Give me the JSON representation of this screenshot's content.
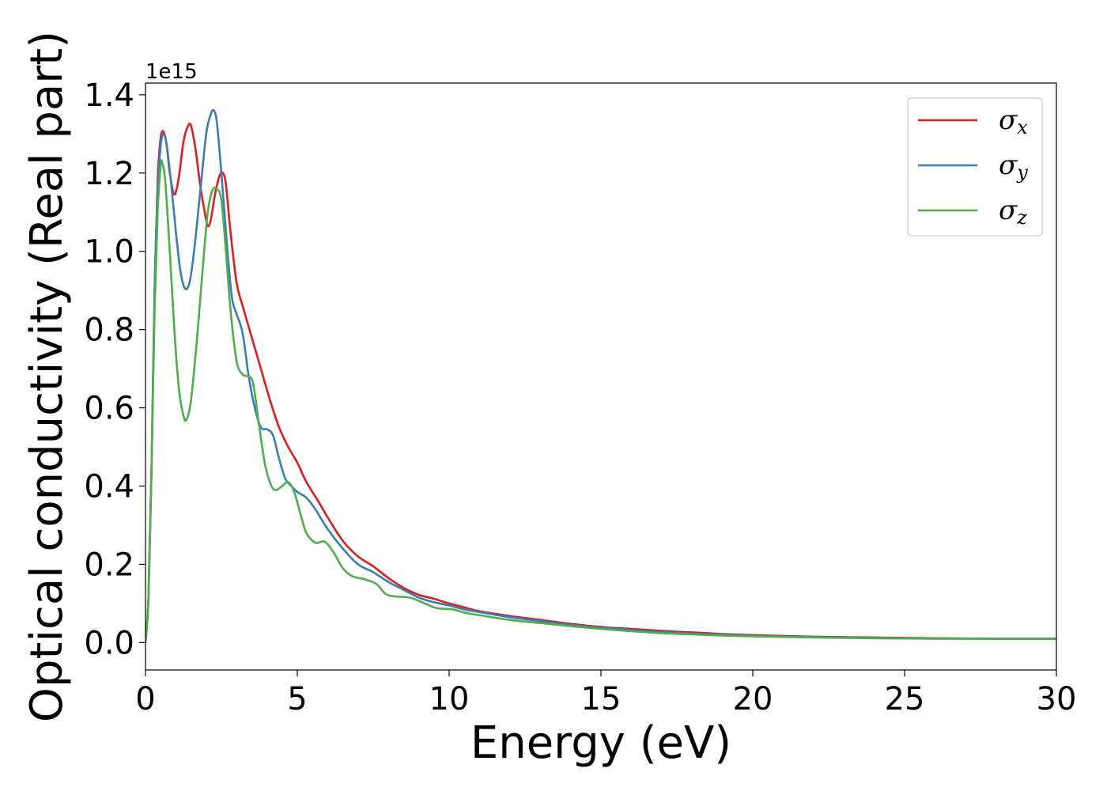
{
  "chart_data": {
    "type": "line",
    "title": "",
    "xlabel": "Energy (eV)",
    "ylabel": "Optical conductivity (Real part)",
    "y_offset_label": "1e15",
    "xlim": [
      0,
      30
    ],
    "ylim": [
      -0.07,
      1.43
    ],
    "x_ticks": [
      0,
      5,
      10,
      15,
      20,
      25,
      30
    ],
    "x_tick_labels": [
      "0",
      "5",
      "10",
      "15",
      "20",
      "25",
      "30"
    ],
    "y_ticks": [
      0.0,
      0.2,
      0.4,
      0.6,
      0.8,
      1.0,
      1.2,
      1.4
    ],
    "y_tick_labels": [
      "0.0",
      "0.2",
      "0.4",
      "0.6",
      "0.8",
      "1.0",
      "1.2",
      "1.4"
    ],
    "grid": false,
    "legend_position": "top-right",
    "series": [
      {
        "name": "σx",
        "symbol": "σ",
        "subscript": "x",
        "color": "#e41a1c",
        "points": [
          [
            0,
            0.0
          ],
          [
            0.1,
            0.12
          ],
          [
            0.2,
            0.45
          ],
          [
            0.3,
            0.9
          ],
          [
            0.4,
            1.18
          ],
          [
            0.5,
            1.29
          ],
          [
            0.6,
            1.305
          ],
          [
            0.7,
            1.27
          ],
          [
            0.8,
            1.2
          ],
          [
            0.95,
            1.145
          ],
          [
            1.1,
            1.19
          ],
          [
            1.25,
            1.28
          ],
          [
            1.4,
            1.32
          ],
          [
            1.5,
            1.32
          ],
          [
            1.65,
            1.26
          ],
          [
            1.8,
            1.17
          ],
          [
            1.95,
            1.1
          ],
          [
            2.05,
            1.065
          ],
          [
            2.15,
            1.08
          ],
          [
            2.3,
            1.15
          ],
          [
            2.45,
            1.195
          ],
          [
            2.55,
            1.2
          ],
          [
            2.65,
            1.17
          ],
          [
            2.8,
            1.05
          ],
          [
            3.0,
            0.92
          ],
          [
            3.2,
            0.86
          ],
          [
            3.5,
            0.78
          ],
          [
            3.8,
            0.7
          ],
          [
            4.1,
            0.62
          ],
          [
            4.4,
            0.55
          ],
          [
            4.7,
            0.5
          ],
          [
            5.0,
            0.46
          ],
          [
            5.3,
            0.41
          ],
          [
            5.7,
            0.36
          ],
          [
            6.0,
            0.32
          ],
          [
            6.5,
            0.26
          ],
          [
            7.0,
            0.22
          ],
          [
            7.5,
            0.195
          ],
          [
            8.0,
            0.165
          ],
          [
            8.5,
            0.14
          ],
          [
            9.0,
            0.122
          ],
          [
            9.5,
            0.112
          ],
          [
            10.0,
            0.1
          ],
          [
            10.5,
            0.09
          ],
          [
            11.0,
            0.08
          ],
          [
            12.0,
            0.068
          ],
          [
            13.0,
            0.058
          ],
          [
            14.0,
            0.048
          ],
          [
            15.0,
            0.04
          ],
          [
            16.0,
            0.035
          ],
          [
            17.0,
            0.03
          ],
          [
            18.0,
            0.026
          ],
          [
            19.0,
            0.022
          ],
          [
            20.0,
            0.019
          ],
          [
            22.0,
            0.015
          ],
          [
            24.0,
            0.013
          ],
          [
            26.0,
            0.011
          ],
          [
            28.0,
            0.01
          ],
          [
            30.0,
            0.01
          ]
        ]
      },
      {
        "name": "σy",
        "symbol": "σ",
        "subscript": "y",
        "color": "#377eb8",
        "points": [
          [
            0,
            0.0
          ],
          [
            0.1,
            0.12
          ],
          [
            0.2,
            0.45
          ],
          [
            0.3,
            0.9
          ],
          [
            0.4,
            1.15
          ],
          [
            0.5,
            1.27
          ],
          [
            0.6,
            1.3
          ],
          [
            0.7,
            1.27
          ],
          [
            0.85,
            1.17
          ],
          [
            1.0,
            1.05
          ],
          [
            1.15,
            0.95
          ],
          [
            1.3,
            0.905
          ],
          [
            1.45,
            0.92
          ],
          [
            1.6,
            1.0
          ],
          [
            1.8,
            1.15
          ],
          [
            2.0,
            1.3
          ],
          [
            2.15,
            1.35
          ],
          [
            2.25,
            1.36
          ],
          [
            2.35,
            1.33
          ],
          [
            2.5,
            1.2
          ],
          [
            2.7,
            1.0
          ],
          [
            2.85,
            0.88
          ],
          [
            3.0,
            0.84
          ],
          [
            3.2,
            0.79
          ],
          [
            3.4,
            0.68
          ],
          [
            3.6,
            0.6
          ],
          [
            3.8,
            0.55
          ],
          [
            4.0,
            0.545
          ],
          [
            4.2,
            0.53
          ],
          [
            4.4,
            0.47
          ],
          [
            4.6,
            0.42
          ],
          [
            4.8,
            0.4
          ],
          [
            5.0,
            0.385
          ],
          [
            5.3,
            0.37
          ],
          [
            5.6,
            0.34
          ],
          [
            6.0,
            0.29
          ],
          [
            6.5,
            0.24
          ],
          [
            7.0,
            0.2
          ],
          [
            7.5,
            0.18
          ],
          [
            8.0,
            0.155
          ],
          [
            8.5,
            0.135
          ],
          [
            9.0,
            0.115
          ],
          [
            9.5,
            0.103
          ],
          [
            10.0,
            0.095
          ],
          [
            10.5,
            0.085
          ],
          [
            11.0,
            0.078
          ],
          [
            12.0,
            0.065
          ],
          [
            13.0,
            0.055
          ],
          [
            14.0,
            0.045
          ],
          [
            15.0,
            0.038
          ],
          [
            16.0,
            0.032
          ],
          [
            17.0,
            0.027
          ],
          [
            18.0,
            0.023
          ],
          [
            19.0,
            0.02
          ],
          [
            20.0,
            0.017
          ],
          [
            22.0,
            0.014
          ],
          [
            24.0,
            0.012
          ],
          [
            26.0,
            0.01
          ],
          [
            28.0,
            0.01
          ],
          [
            30.0,
            0.01
          ]
        ]
      },
      {
        "name": "σz",
        "symbol": "σ",
        "subscript": "z",
        "color": "#4daf4a",
        "points": [
          [
            0,
            0.0
          ],
          [
            0.1,
            0.12
          ],
          [
            0.2,
            0.45
          ],
          [
            0.3,
            0.85
          ],
          [
            0.4,
            1.1
          ],
          [
            0.5,
            1.22
          ],
          [
            0.55,
            1.225
          ],
          [
            0.65,
            1.18
          ],
          [
            0.8,
            1.0
          ],
          [
            0.95,
            0.8
          ],
          [
            1.1,
            0.65
          ],
          [
            1.25,
            0.58
          ],
          [
            1.35,
            0.57
          ],
          [
            1.5,
            0.62
          ],
          [
            1.7,
            0.78
          ],
          [
            1.9,
            0.97
          ],
          [
            2.05,
            1.1
          ],
          [
            2.2,
            1.155
          ],
          [
            2.35,
            1.16
          ],
          [
            2.5,
            1.13
          ],
          [
            2.65,
            1.0
          ],
          [
            2.8,
            0.85
          ],
          [
            3.0,
            0.72
          ],
          [
            3.2,
            0.685
          ],
          [
            3.4,
            0.68
          ],
          [
            3.55,
            0.66
          ],
          [
            3.75,
            0.55
          ],
          [
            3.95,
            0.45
          ],
          [
            4.15,
            0.4
          ],
          [
            4.3,
            0.39
          ],
          [
            4.5,
            0.4
          ],
          [
            4.7,
            0.41
          ],
          [
            4.9,
            0.385
          ],
          [
            5.1,
            0.33
          ],
          [
            5.3,
            0.28
          ],
          [
            5.6,
            0.255
          ],
          [
            5.9,
            0.258
          ],
          [
            6.2,
            0.23
          ],
          [
            6.5,
            0.19
          ],
          [
            6.8,
            0.17
          ],
          [
            7.2,
            0.162
          ],
          [
            7.6,
            0.15
          ],
          [
            7.9,
            0.125
          ],
          [
            8.2,
            0.118
          ],
          [
            8.7,
            0.115
          ],
          [
            9.2,
            0.1
          ],
          [
            9.6,
            0.088
          ],
          [
            10.1,
            0.085
          ],
          [
            10.6,
            0.075
          ],
          [
            11.0,
            0.07
          ],
          [
            12.0,
            0.058
          ],
          [
            13.0,
            0.05
          ],
          [
            14.0,
            0.042
          ],
          [
            15.0,
            0.035
          ],
          [
            16.0,
            0.029
          ],
          [
            17.0,
            0.024
          ],
          [
            18.0,
            0.021
          ],
          [
            19.0,
            0.018
          ],
          [
            20.0,
            0.016
          ],
          [
            22.0,
            0.013
          ],
          [
            24.0,
            0.011
          ],
          [
            26.0,
            0.01
          ],
          [
            28.0,
            0.01
          ],
          [
            30.0,
            0.01
          ]
        ]
      }
    ]
  }
}
